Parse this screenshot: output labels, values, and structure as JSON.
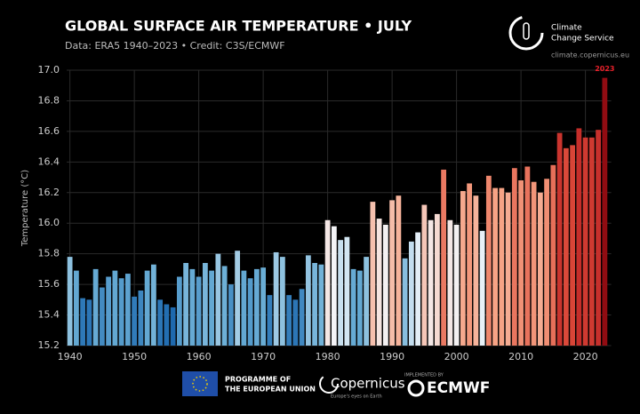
{
  "chart_data": {
    "type": "bar",
    "title": "GLOBAL SURFACE AIR TEMPERATURE • JULY",
    "subtitle": "Data: ERA5 1940–2023 • Credit: C3S/ECMWF",
    "y_label": "Temperature (°C)",
    "x": [
      1940,
      1941,
      1942,
      1943,
      1944,
      1945,
      1946,
      1947,
      1948,
      1949,
      1950,
      1951,
      1952,
      1953,
      1954,
      1955,
      1956,
      1957,
      1958,
      1959,
      1960,
      1961,
      1962,
      1963,
      1964,
      1965,
      1966,
      1967,
      1968,
      1969,
      1970,
      1971,
      1972,
      1973,
      1974,
      1975,
      1976,
      1977,
      1978,
      1979,
      1980,
      1981,
      1982,
      1983,
      1984,
      1985,
      1986,
      1987,
      1988,
      1989,
      1990,
      1991,
      1992,
      1993,
      1994,
      1995,
      1996,
      1997,
      1998,
      1999,
      2000,
      2001,
      2002,
      2003,
      2004,
      2005,
      2006,
      2007,
      2008,
      2009,
      2010,
      2011,
      2012,
      2013,
      2014,
      2015,
      2016,
      2017,
      2018,
      2019,
      2020,
      2021,
      2022,
      2023
    ],
    "values": [
      15.78,
      15.69,
      15.51,
      15.5,
      15.7,
      15.58,
      15.65,
      15.69,
      15.64,
      15.67,
      15.52,
      15.56,
      15.69,
      15.73,
      15.5,
      15.47,
      15.45,
      15.65,
      15.74,
      15.7,
      15.65,
      15.74,
      15.69,
      15.8,
      15.72,
      15.6,
      15.82,
      15.69,
      15.64,
      15.7,
      15.71,
      15.53,
      15.81,
      15.78,
      15.53,
      15.5,
      15.57,
      15.79,
      15.74,
      15.73,
      16.02,
      15.98,
      15.89,
      15.91,
      15.7,
      15.69,
      15.78,
      16.14,
      16.03,
      15.99,
      16.15,
      16.18,
      15.77,
      15.88,
      15.94,
      16.12,
      16.02,
      16.06,
      16.35,
      16.02,
      15.99,
      16.21,
      16.26,
      16.18,
      15.95,
      16.31,
      16.23,
      16.23,
      16.2,
      16.36,
      16.28,
      16.37,
      16.27,
      16.2,
      16.29,
      16.38,
      16.59,
      16.49,
      16.51,
      16.62,
      16.56,
      16.56,
      16.61,
      16.95
    ],
    "color_scale": [
      "#08306b",
      "#1f6bb0",
      "#6aaed6",
      "#f4f7fb",
      "#f6a385",
      "#dc4a3a",
      "#b0141c",
      "#8a0a0f"
    ],
    "highlight_color": "#e8202a",
    "xlim": [
      1939.5,
      2024
    ],
    "xticks": [
      1940,
      1950,
      1960,
      1970,
      1980,
      1990,
      2000,
      2010,
      2020
    ],
    "ylim": [
      15.2,
      17.0
    ],
    "yticks": [
      15.2,
      15.4,
      15.6,
      15.8,
      {
        "value": 16.0,
        "label": "16.0"
      },
      16.2,
      16.4,
      16.6,
      16.8,
      {
        "value": 17.0,
        "label": "17.0"
      }
    ],
    "grid": true
  },
  "branding": {
    "line1": "Climate",
    "line2": "Change Service",
    "url": "climate.copernicus.eu"
  },
  "footer": {
    "eu_line1": "PROGRAMME OF",
    "eu_line2": "THE EUROPEAN UNION",
    "copernicus": "Copernicus",
    "copernicus_tagline": "Europe's eyes on Earth",
    "implemented": "IMPLEMENTED BY",
    "ecmwf": "ECMWF"
  }
}
